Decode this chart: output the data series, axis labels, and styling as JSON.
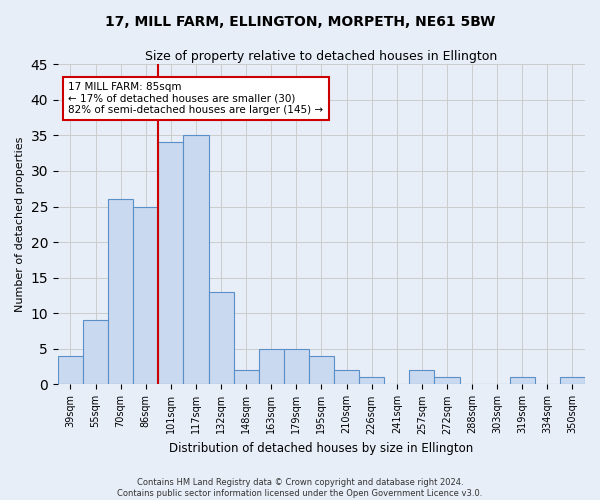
{
  "title": "17, MILL FARM, ELLINGTON, MORPETH, NE61 5BW",
  "subtitle": "Size of property relative to detached houses in Ellington",
  "xlabel": "Distribution of detached houses by size in Ellington",
  "ylabel": "Number of detached properties",
  "categories": [
    "39sqm",
    "55sqm",
    "70sqm",
    "86sqm",
    "101sqm",
    "117sqm",
    "132sqm",
    "148sqm",
    "163sqm",
    "179sqm",
    "195sqm",
    "210sqm",
    "226sqm",
    "241sqm",
    "257sqm",
    "272sqm",
    "288sqm",
    "303sqm",
    "319sqm",
    "334sqm",
    "350sqm"
  ],
  "values": [
    4,
    9,
    26,
    25,
    34,
    35,
    13,
    2,
    5,
    5,
    4,
    2,
    1,
    0,
    2,
    1,
    0,
    0,
    1,
    0,
    1
  ],
  "bar_color": "#c9d9f0",
  "bar_edge_color": "#5a8fc7",
  "vline_x_index": 3,
  "vline_color": "#cc0000",
  "annotation_line1": "17 MILL FARM: 85sqm",
  "annotation_line2": "← 17% of detached houses are smaller (30)",
  "annotation_line3": "82% of semi-detached houses are larger (145) →",
  "annotation_box_color": "#ffffff",
  "annotation_box_edge_color": "#cc0000",
  "ylim": [
    0,
    45
  ],
  "yticks": [
    0,
    5,
    10,
    15,
    20,
    25,
    30,
    35,
    40,
    45
  ],
  "grid_color": "#cccccc",
  "footnote": "Contains HM Land Registry data © Crown copyright and database right 2024.\nContains public sector information licensed under the Open Government Licence v3.0.",
  "background_color": "#e8eef8",
  "title_fontsize": 10,
  "subtitle_fontsize": 9,
  "axis_fontsize": 8,
  "tick_fontsize": 7,
  "annotation_fontsize": 7.5
}
